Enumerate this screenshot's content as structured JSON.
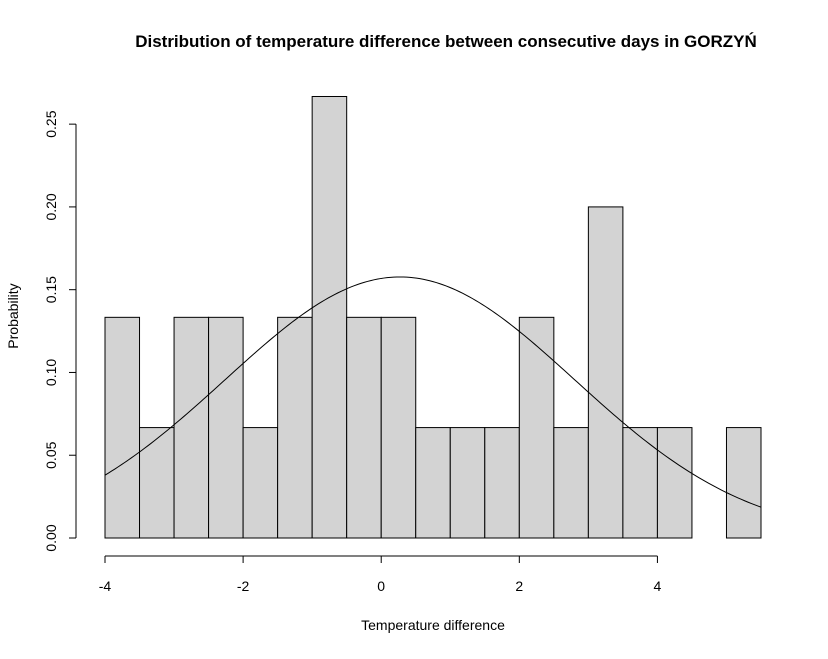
{
  "chart_data": {
    "type": "bar",
    "subtype": "histogram",
    "title": "Distribution of temperature difference between consecutive days in GORZYŃ",
    "xlabel": "Temperature difference",
    "ylabel": "Probability",
    "xlim": [
      -4,
      5.5
    ],
    "ylim": [
      0,
      0.267
    ],
    "x_ticks": [
      -4,
      -2,
      0,
      2,
      4
    ],
    "x_tick_labels": [
      "-4",
      "-2",
      "0",
      "2",
      "4"
    ],
    "y_ticks": [
      0,
      0.05,
      0.1,
      0.15,
      0.2,
      0.25
    ],
    "y_tick_labels": [
      "0.00",
      "0.05",
      "0.10",
      "0.15",
      "0.20",
      "0.25"
    ],
    "bin_width": 0.5,
    "bins": [
      {
        "start": -4.0,
        "end": -3.5,
        "value": 0.1333
      },
      {
        "start": -3.5,
        "end": -3.0,
        "value": 0.0667
      },
      {
        "start": -3.0,
        "end": -2.5,
        "value": 0.1333
      },
      {
        "start": -2.5,
        "end": -2.0,
        "value": 0.1333
      },
      {
        "start": -2.0,
        "end": -1.5,
        "value": 0.0667
      },
      {
        "start": -1.5,
        "end": -1.0,
        "value": 0.1333
      },
      {
        "start": -1.0,
        "end": -0.5,
        "value": 0.2667
      },
      {
        "start": -0.5,
        "end": 0.0,
        "value": 0.1333
      },
      {
        "start": 0.0,
        "end": 0.5,
        "value": 0.1333
      },
      {
        "start": 0.5,
        "end": 1.0,
        "value": 0.0667
      },
      {
        "start": 1.0,
        "end": 1.5,
        "value": 0.0667
      },
      {
        "start": 1.5,
        "end": 2.0,
        "value": 0.0667
      },
      {
        "start": 2.0,
        "end": 2.5,
        "value": 0.1333
      },
      {
        "start": 2.5,
        "end": 3.0,
        "value": 0.0667
      },
      {
        "start": 3.0,
        "end": 3.5,
        "value": 0.2
      },
      {
        "start": 3.5,
        "end": 4.0,
        "value": 0.0667
      },
      {
        "start": 4.0,
        "end": 4.5,
        "value": 0.0667
      },
      {
        "start": 4.5,
        "end": 5.0,
        "value": 0
      },
      {
        "start": 5.0,
        "end": 5.5,
        "value": 0.0667
      }
    ],
    "density_curve": {
      "kind": "normal",
      "mean": 0.27,
      "sd": 2.53
    },
    "bar_fill": "#d3d3d3",
    "bar_stroke": "#000000",
    "grid": false,
    "legend": "none"
  }
}
